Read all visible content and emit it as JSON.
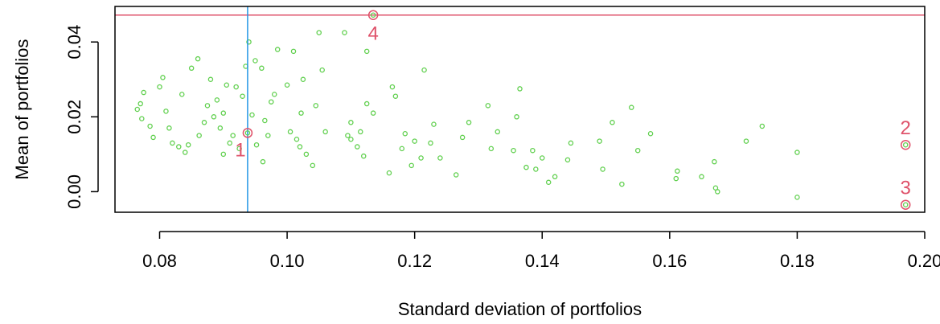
{
  "chart_data": {
    "type": "scatter",
    "title": "",
    "xlabel": "Standard deviation of portfolios",
    "ylabel": "Mean of portfolios",
    "xlim": [
      0.073,
      0.2
    ],
    "ylim": [
      -0.0055,
      0.0495
    ],
    "xticks": [
      "0.08",
      "0.10",
      "0.12",
      "0.14",
      "0.16",
      "0.18",
      "0.20"
    ],
    "yticks": [
      "0.00",
      "0.02",
      "0.04"
    ],
    "grid": false,
    "colors": {
      "points": "#61D04F",
      "highlight": "#DF536B",
      "vline": "#2297E6",
      "axis": "#000000"
    },
    "reference_lines": {
      "hline_y": 0.0472,
      "vline_x": 0.0938
    },
    "series": [
      {
        "points": [
          [
            0.0765,
            0.022
          ],
          [
            0.077,
            0.0235
          ],
          [
            0.0772,
            0.0195
          ],
          [
            0.0775,
            0.0265
          ],
          [
            0.0785,
            0.0175
          ],
          [
            0.079,
            0.0145
          ],
          [
            0.08,
            0.028
          ],
          [
            0.0805,
            0.0305
          ],
          [
            0.081,
            0.0215
          ],
          [
            0.0815,
            0.017
          ],
          [
            0.082,
            0.013
          ],
          [
            0.083,
            0.012
          ],
          [
            0.0835,
            0.026
          ],
          [
            0.084,
            0.0105
          ],
          [
            0.0845,
            0.0125
          ],
          [
            0.085,
            0.033
          ],
          [
            0.086,
            0.0355
          ],
          [
            0.0862,
            0.015
          ],
          [
            0.087,
            0.0185
          ],
          [
            0.0875,
            0.023
          ],
          [
            0.088,
            0.03
          ],
          [
            0.0885,
            0.02
          ],
          [
            0.089,
            0.0245
          ],
          [
            0.0895,
            0.017
          ],
          [
            0.09,
            0.021
          ],
          [
            0.09,
            0.01
          ],
          [
            0.0905,
            0.0285
          ],
          [
            0.091,
            0.013
          ],
          [
            0.0915,
            0.015
          ],
          [
            0.092,
            0.028
          ],
          [
            0.0925,
            0.0115
          ],
          [
            0.093,
            0.0255
          ],
          [
            0.0935,
            0.0335
          ],
          [
            0.094,
            0.04
          ],
          [
            0.0945,
            0.0205
          ],
          [
            0.095,
            0.035
          ],
          [
            0.0952,
            0.0125
          ],
          [
            0.096,
            0.033
          ],
          [
            0.0962,
            0.008
          ],
          [
            0.0965,
            0.019
          ],
          [
            0.097,
            0.015
          ],
          [
            0.0975,
            0.024
          ],
          [
            0.098,
            0.026
          ],
          [
            0.0985,
            0.038
          ],
          [
            0.1,
            0.0285
          ],
          [
            0.1005,
            0.016
          ],
          [
            0.101,
            0.0375
          ],
          [
            0.1015,
            0.014
          ],
          [
            0.102,
            0.012
          ],
          [
            0.1022,
            0.021
          ],
          [
            0.1025,
            0.03
          ],
          [
            0.103,
            0.01
          ],
          [
            0.104,
            0.007
          ],
          [
            0.1045,
            0.023
          ],
          [
            0.105,
            0.0425
          ],
          [
            0.1055,
            0.0325
          ],
          [
            0.106,
            0.016
          ],
          [
            0.109,
            0.0425
          ],
          [
            0.1095,
            0.015
          ],
          [
            0.11,
            0.0185
          ],
          [
            0.11,
            0.014
          ],
          [
            0.111,
            0.012
          ],
          [
            0.1115,
            0.016
          ],
          [
            0.112,
            0.0095
          ],
          [
            0.1125,
            0.0235
          ],
          [
            0.1125,
            0.0375
          ],
          [
            0.1135,
            0.021
          ],
          [
            0.116,
            0.005
          ],
          [
            0.1165,
            0.028
          ],
          [
            0.117,
            0.0255
          ],
          [
            0.118,
            0.0115
          ],
          [
            0.1185,
            0.0155
          ],
          [
            0.1195,
            0.007
          ],
          [
            0.12,
            0.0135
          ],
          [
            0.121,
            0.009
          ],
          [
            0.1215,
            0.0325
          ],
          [
            0.1225,
            0.013
          ],
          [
            0.123,
            0.018
          ],
          [
            0.124,
            0.009
          ],
          [
            0.1265,
            0.0045
          ],
          [
            0.1275,
            0.0145
          ],
          [
            0.1285,
            0.0185
          ],
          [
            0.1315,
            0.023
          ],
          [
            0.132,
            0.0115
          ],
          [
            0.133,
            0.016
          ],
          [
            0.1355,
            0.011
          ],
          [
            0.136,
            0.02
          ],
          [
            0.1365,
            0.0275
          ],
          [
            0.1375,
            0.0065
          ],
          [
            0.1385,
            0.011
          ],
          [
            0.139,
            0.006
          ],
          [
            0.14,
            0.009
          ],
          [
            0.141,
            0.0025
          ],
          [
            0.142,
            0.004
          ],
          [
            0.144,
            0.0085
          ],
          [
            0.1445,
            0.013
          ],
          [
            0.149,
            0.0135
          ],
          [
            0.1495,
            0.006
          ],
          [
            0.151,
            0.0185
          ],
          [
            0.1525,
            0.002
          ],
          [
            0.154,
            0.0225
          ],
          [
            0.155,
            0.011
          ],
          [
            0.157,
            0.0155
          ],
          [
            0.161,
            0.0035
          ],
          [
            0.1612,
            0.0055
          ],
          [
            0.165,
            0.004
          ],
          [
            0.167,
            0.008
          ],
          [
            0.1672,
            0.001
          ],
          [
            0.1675,
            0.0
          ],
          [
            0.172,
            0.0135
          ],
          [
            0.1745,
            0.0175
          ],
          [
            0.18,
            0.0105
          ],
          [
            0.18,
            -0.0015
          ]
        ]
      }
    ],
    "highlighted": [
      {
        "label": "1",
        "x": 0.0938,
        "y": 0.0157,
        "label_side": "bottom-left"
      },
      {
        "label": "2",
        "x": 0.197,
        "y": 0.0125,
        "label_side": "above"
      },
      {
        "label": "3",
        "x": 0.197,
        "y": -0.0035,
        "label_side": "above"
      },
      {
        "label": "4",
        "x": 0.1135,
        "y": 0.0472,
        "label_side": "below"
      }
    ]
  }
}
